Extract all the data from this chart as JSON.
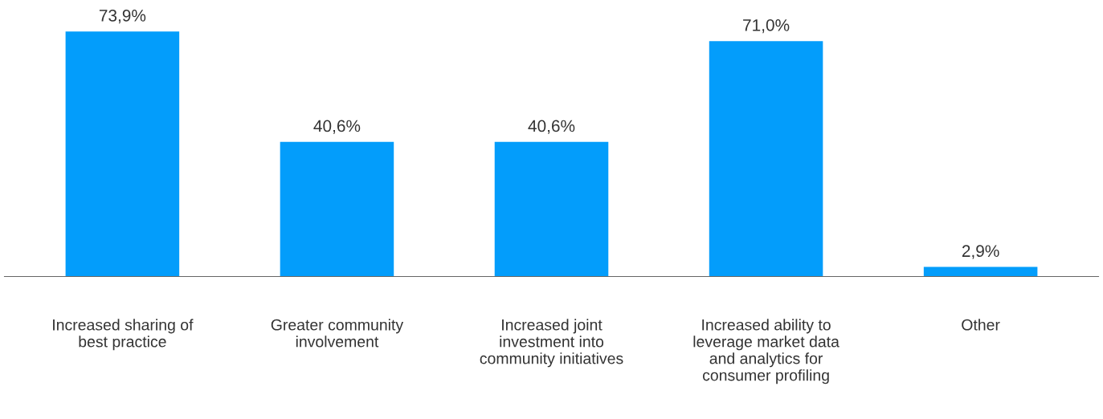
{
  "chart_data": {
    "type": "bar",
    "categories": [
      "Increased sharing of\nbest practice",
      "Greater community\ninvolvement",
      "Increased joint\ninvestment into\ncommunity initiatives",
      "Increased ability to\nleverage market data\nand analytics for\nconsumer profiling",
      "Other"
    ],
    "values": [
      73.9,
      40.6,
      40.6,
      71.0,
      2.9
    ],
    "value_labels": [
      "73,9%",
      "40,6%",
      "40,6%",
      "71,0%",
      "2,9%"
    ],
    "color": "#039dfb",
    "grid": false,
    "legend": false
  }
}
